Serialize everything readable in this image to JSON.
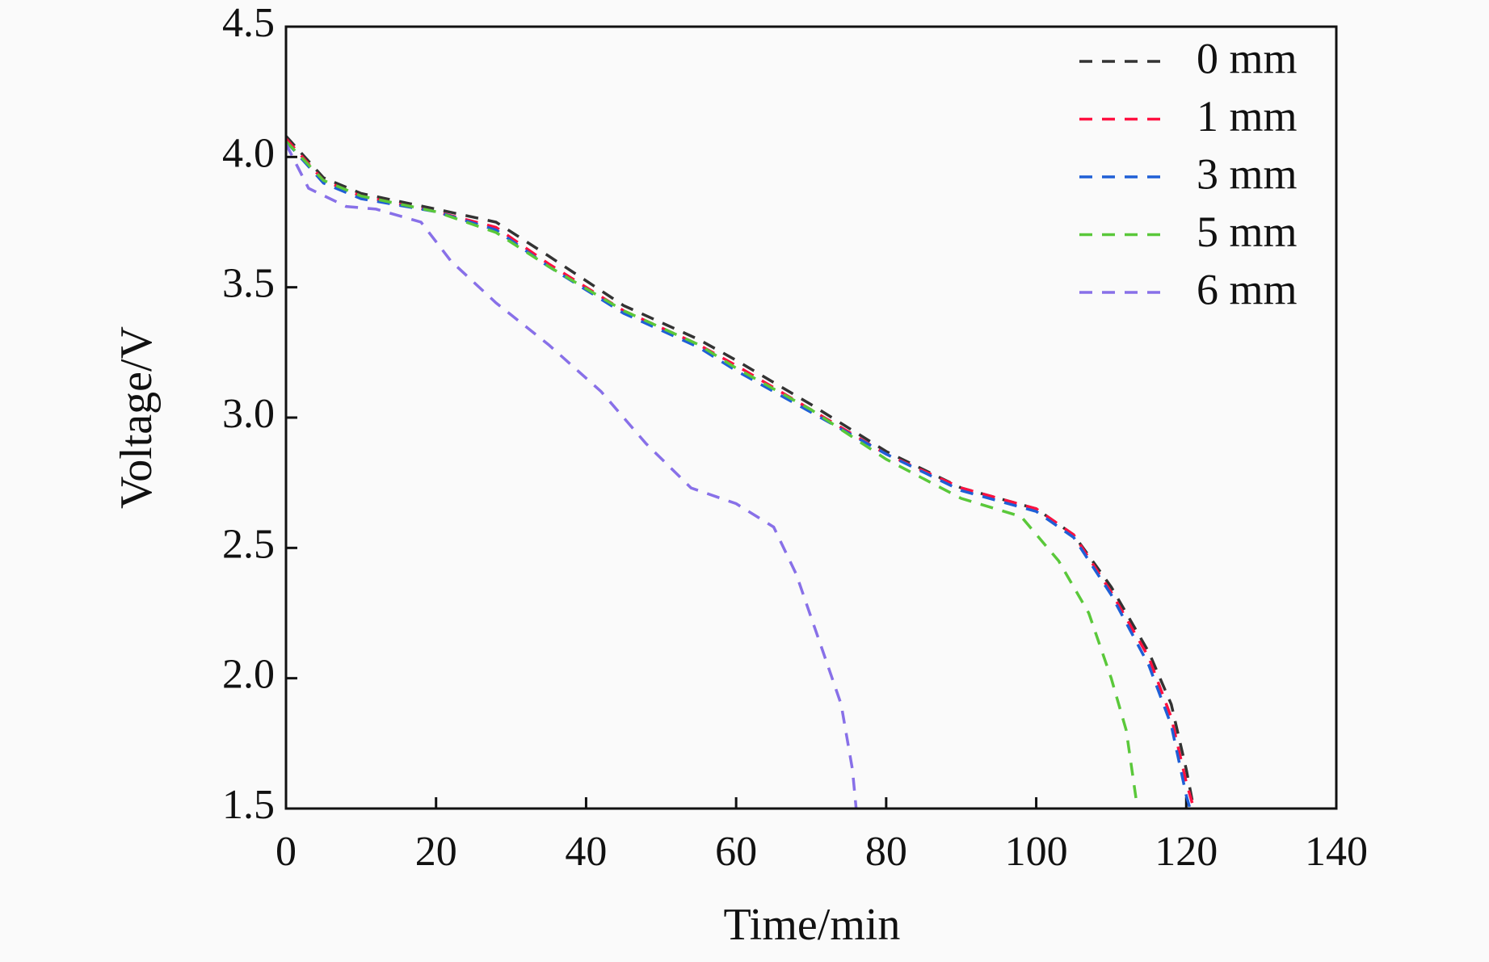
{
  "chart_data": {
    "type": "line",
    "x_label": "Time/min",
    "y_label": "Voltage/V",
    "xlim": [
      0,
      140
    ],
    "ylim": [
      1.5,
      4.5
    ],
    "xticks": [
      0,
      20,
      40,
      60,
      80,
      100,
      120,
      140
    ],
    "yticks": [
      1.5,
      {
        "value": 2,
        "label": "2.0"
      },
      2.5,
      {
        "value": 3,
        "label": "3.0"
      },
      3.5,
      {
        "value": 4,
        "label": "4.0"
      },
      4.5
    ],
    "legend": "upper right",
    "line_style": "dashed",
    "series": [
      {
        "name": "0 mm",
        "color": "#333333",
        "x": [
          0,
          5,
          10,
          20,
          28,
          35,
          45,
          55,
          60,
          70,
          80,
          90,
          100,
          105,
          110,
          115,
          118,
          120,
          121
        ],
        "values": [
          4.08,
          3.92,
          3.86,
          3.8,
          3.75,
          3.62,
          3.43,
          3.3,
          3.22,
          3.05,
          2.87,
          2.73,
          2.65,
          2.55,
          2.35,
          2.1,
          1.9,
          1.65,
          1.5
        ]
      },
      {
        "name": "1 mm",
        "color": "#ff1040",
        "x": [
          0,
          5,
          10,
          20,
          28,
          35,
          45,
          55,
          60,
          70,
          80,
          90,
          100,
          105,
          110,
          115,
          118,
          120,
          121
        ],
        "values": [
          4.07,
          3.91,
          3.85,
          3.79,
          3.73,
          3.59,
          3.41,
          3.28,
          3.2,
          3.03,
          2.86,
          2.73,
          2.65,
          2.55,
          2.33,
          2.08,
          1.85,
          1.6,
          1.5
        ]
      },
      {
        "name": "3 mm",
        "color": "#1f5fd6",
        "x": [
          0,
          5,
          10,
          20,
          28,
          35,
          45,
          55,
          60,
          70,
          80,
          90,
          100,
          105,
          110,
          115,
          118,
          120,
          120.5
        ],
        "values": [
          4.06,
          3.9,
          3.84,
          3.79,
          3.72,
          3.58,
          3.4,
          3.27,
          3.18,
          3.02,
          2.86,
          2.72,
          2.64,
          2.54,
          2.32,
          2.05,
          1.82,
          1.55,
          1.5
        ]
      },
      {
        "name": "5 mm",
        "color": "#5ac83a",
        "x": [
          0,
          5,
          10,
          20,
          28,
          35,
          45,
          55,
          60,
          70,
          80,
          90,
          98,
          103,
          107,
          110,
          112,
          113.5
        ],
        "values": [
          4.06,
          3.91,
          3.85,
          3.79,
          3.71,
          3.58,
          3.41,
          3.28,
          3.19,
          3.03,
          2.84,
          2.69,
          2.62,
          2.45,
          2.25,
          2.0,
          1.8,
          1.5
        ]
      },
      {
        "name": "6 mm",
        "color": "#8870e8",
        "x": [
          0,
          3,
          8,
          12,
          18,
          22,
          28,
          35,
          42,
          48,
          54,
          60,
          65,
          68,
          71,
          74,
          75.5,
          76
        ],
        "values": [
          4.05,
          3.88,
          3.81,
          3.8,
          3.75,
          3.6,
          3.44,
          3.28,
          3.1,
          2.9,
          2.73,
          2.67,
          2.58,
          2.4,
          2.15,
          1.9,
          1.65,
          1.5
        ]
      }
    ]
  }
}
